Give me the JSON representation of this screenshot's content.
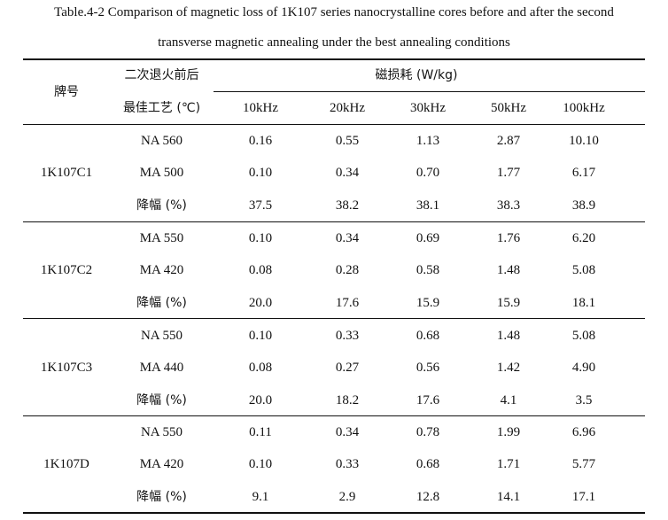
{
  "caption": {
    "line1": "Table.4-2 Comparison of magnetic loss of 1K107 series nanocrystalline cores before and after the second",
    "line2": "transverse magnetic annealing under the best annealing conditions"
  },
  "header": {
    "brand": "牌号",
    "process_line1": "二次退火前后",
    "process_line2": "最佳工艺 (℃)",
    "loss_group": "磁损耗 (W/kg)",
    "frequencies": [
      "10kHz",
      "20kHz",
      "30kHz",
      "50kHz",
      "100kHz"
    ]
  },
  "groups": [
    {
      "brand": "1K107C1",
      "rows": [
        {
          "process": "NA 560",
          "values": [
            "0.16",
            "0.55",
            "1.13",
            "2.87",
            "10.10"
          ]
        },
        {
          "process": "MA 500",
          "values": [
            "0.10",
            "0.34",
            "0.70",
            "1.77",
            "6.17"
          ]
        },
        {
          "process": "降幅 (%)",
          "values": [
            "37.5",
            "38.2",
            "38.1",
            "38.3",
            "38.9"
          ]
        }
      ]
    },
    {
      "brand": "1K107C2",
      "rows": [
        {
          "process": "MA 550",
          "values": [
            "0.10",
            "0.34",
            "0.69",
            "1.76",
            "6.20"
          ]
        },
        {
          "process": "MA 420",
          "values": [
            "0.08",
            "0.28",
            "0.58",
            "1.48",
            "5.08"
          ]
        },
        {
          "process": "降幅 (%)",
          "values": [
            "20.0",
            "17.6",
            "15.9",
            "15.9",
            "18.1"
          ]
        }
      ]
    },
    {
      "brand": "1K107C3",
      "rows": [
        {
          "process": "NA 550",
          "values": [
            "0.10",
            "0.33",
            "0.68",
            "1.48",
            "5.08"
          ]
        },
        {
          "process": "MA 440",
          "values": [
            "0.08",
            "0.27",
            "0.56",
            "1.42",
            "4.90"
          ]
        },
        {
          "process": "降幅 (%)",
          "values": [
            "20.0",
            "18.2",
            "17.6",
            "4.1",
            "3.5"
          ]
        }
      ]
    },
    {
      "brand": "1K107D",
      "rows": [
        {
          "process": "NA 550",
          "values": [
            "0.11",
            "0.34",
            "0.78",
            "1.99",
            "6.96"
          ]
        },
        {
          "process": "MA 420",
          "values": [
            "0.10",
            "0.33",
            "0.68",
            "1.71",
            "5.77"
          ]
        },
        {
          "process": "降幅 (%)",
          "values": [
            "9.1",
            "2.9",
            "12.8",
            "14.1",
            "17.1"
          ]
        }
      ]
    }
  ]
}
